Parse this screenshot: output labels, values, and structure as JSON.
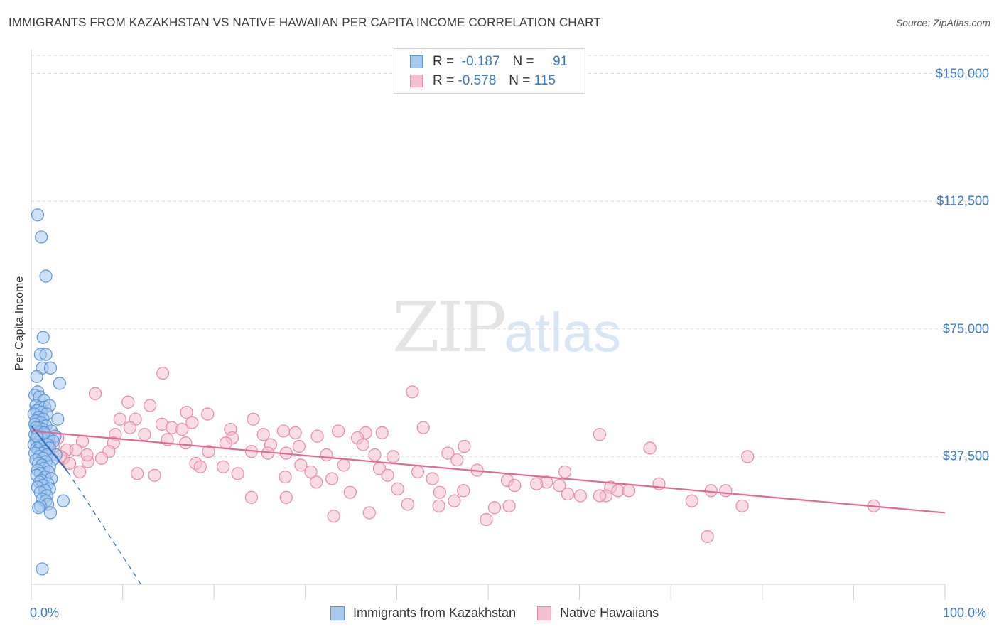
{
  "title": "IMMIGRANTS FROM KAZAKHSTAN VS NATIVE HAWAIIAN PER CAPITA INCOME CORRELATION CHART",
  "source": "Source: ZipAtlas.com",
  "watermark": {
    "zip": "ZIP",
    "atlas": "atlas"
  },
  "legend_top": {
    "rows": [
      {
        "r_label": "R =",
        "r_value": "-0.187",
        "n_label": "N =",
        "n_value": "91"
      },
      {
        "r_label": "R =",
        "r_value": "-0.578",
        "n_label": "N =",
        "n_value": "115"
      }
    ]
  },
  "colors": {
    "blue_fill": "#a8c8ee",
    "blue_stroke": "#5b95d6",
    "blue_line": "#2f6cc4",
    "pink_fill": "#f6bfd0",
    "pink_stroke": "#e88aa8",
    "pink_line": "#e06a93",
    "tick_text": "#3a78c9",
    "grid": "#d9d9d9"
  },
  "chart_data": {
    "type": "scatter",
    "title": "IMMIGRANTS FROM KAZAKHSTAN VS NATIVE HAWAIIAN PER CAPITA INCOME CORRELATION CHART",
    "xlabel": "",
    "ylabel": "Per Capita Income",
    "xlim": [
      0,
      100
    ],
    "ylim": [
      0,
      157000
    ],
    "y_ticks": [
      {
        "value": 37500,
        "label": "$37,500"
      },
      {
        "value": 75000,
        "label": "$75,000"
      },
      {
        "value": 112500,
        "label": "$112,500"
      },
      {
        "value": 150000,
        "label": "$150,000"
      }
    ],
    "x_tick_labels": {
      "min": "0.0%",
      "max": "100.0%"
    },
    "series": [
      {
        "name": "Immigrants from Kazakhstan",
        "color": "blue",
        "trend": {
          "x0": 0,
          "y0": 46500,
          "x1": 4.0,
          "y1": 33000,
          "dash_x1": 12.0,
          "dash_y1": 0
        },
        "points": [
          [
            0.7,
            108500
          ],
          [
            1.1,
            102000
          ],
          [
            1.6,
            90500
          ],
          [
            1.3,
            72500
          ],
          [
            1.0,
            67500
          ],
          [
            1.6,
            67500
          ],
          [
            1.2,
            63500
          ],
          [
            2.1,
            63500
          ],
          [
            0.6,
            61000
          ],
          [
            3.1,
            59000
          ],
          [
            0.7,
            56500
          ],
          [
            0.4,
            55500
          ],
          [
            0.9,
            55000
          ],
          [
            1.4,
            54000
          ],
          [
            0.5,
            52500
          ],
          [
            1.0,
            52000
          ],
          [
            1.5,
            52000
          ],
          [
            2.0,
            52500
          ],
          [
            0.6,
            51000
          ],
          [
            1.1,
            50500
          ],
          [
            0.3,
            50000
          ],
          [
            1.7,
            50000
          ],
          [
            0.8,
            49000
          ],
          [
            1.3,
            48500
          ],
          [
            2.9,
            48500
          ],
          [
            0.5,
            48000
          ],
          [
            1.1,
            47500
          ],
          [
            0.4,
            47000
          ],
          [
            1.6,
            46500
          ],
          [
            0.9,
            46000
          ],
          [
            1.3,
            45500
          ],
          [
            0.6,
            45000
          ],
          [
            2.2,
            45000
          ],
          [
            0.8,
            44500
          ],
          [
            1.5,
            44000
          ],
          [
            0.4,
            44000
          ],
          [
            2.6,
            43500
          ],
          [
            1.0,
            43500
          ],
          [
            0.7,
            43000
          ],
          [
            1.9,
            43000
          ],
          [
            1.2,
            42500
          ],
          [
            0.5,
            42500
          ],
          [
            2.4,
            42000
          ],
          [
            0.9,
            42000
          ],
          [
            1.4,
            41500
          ],
          [
            0.3,
            41000
          ],
          [
            1.8,
            41000
          ],
          [
            1.0,
            40500
          ],
          [
            0.6,
            40000
          ],
          [
            2.0,
            40000
          ],
          [
            0.8,
            39500
          ],
          [
            1.5,
            39000
          ],
          [
            1.1,
            38500
          ],
          [
            0.4,
            38500
          ],
          [
            2.7,
            38000
          ],
          [
            1.7,
            38000
          ],
          [
            0.9,
            37500
          ],
          [
            1.3,
            37000
          ],
          [
            0.5,
            36500
          ],
          [
            2.3,
            36500
          ],
          [
            1.6,
            36000
          ],
          [
            0.8,
            35500
          ],
          [
            1.2,
            35000
          ],
          [
            2.0,
            34500
          ],
          [
            1.4,
            34000
          ],
          [
            0.7,
            33500
          ],
          [
            1.9,
            33000
          ],
          [
            1.0,
            32500
          ],
          [
            0.6,
            32000
          ],
          [
            1.5,
            31500
          ],
          [
            2.2,
            31000
          ],
          [
            1.1,
            30500
          ],
          [
            0.9,
            30000
          ],
          [
            1.8,
            29500
          ],
          [
            1.3,
            29000
          ],
          [
            0.7,
            28500
          ],
          [
            2.0,
            28000
          ],
          [
            1.5,
            27500
          ],
          [
            1.0,
            27000
          ],
          [
            1.7,
            26000
          ],
          [
            1.2,
            25000
          ],
          [
            3.5,
            24500
          ],
          [
            1.6,
            24500
          ],
          [
            1.8,
            23500
          ],
          [
            1.0,
            23000
          ],
          [
            0.8,
            22500
          ],
          [
            2.1,
            21000
          ],
          [
            1.2,
            4500
          ],
          [
            0.5,
            46000
          ],
          [
            1.4,
            44500
          ],
          [
            0.6,
            43500
          ]
        ]
      },
      {
        "name": "Native Hawaiians",
        "color": "pink",
        "trend": {
          "x0": 0,
          "y0": 45000,
          "x1": 100,
          "y1": 21000
        },
        "points": [
          [
            14.4,
            62000
          ],
          [
            41.7,
            56500
          ],
          [
            7.0,
            56000
          ],
          [
            10.6,
            53500
          ],
          [
            13.0,
            52500
          ],
          [
            17.0,
            50500
          ],
          [
            19.3,
            50000
          ],
          [
            9.7,
            48500
          ],
          [
            11.4,
            48500
          ],
          [
            24.3,
            48500
          ],
          [
            17.6,
            47500
          ],
          [
            14.3,
            47000
          ],
          [
            10.8,
            46000
          ],
          [
            15.4,
            46000
          ],
          [
            16.5,
            45500
          ],
          [
            21.8,
            45500
          ],
          [
            27.6,
            45000
          ],
          [
            33.6,
            45000
          ],
          [
            42.9,
            46000
          ],
          [
            28.9,
            44500
          ],
          [
            36.6,
            44500
          ],
          [
            9.2,
            44000
          ],
          [
            12.4,
            44000
          ],
          [
            38.4,
            44500
          ],
          [
            25.4,
            44000
          ],
          [
            31.3,
            43500
          ],
          [
            22.0,
            43000
          ],
          [
            35.7,
            43000
          ],
          [
            14.9,
            42500
          ],
          [
            5.6,
            42000
          ],
          [
            16.9,
            41500
          ],
          [
            9.0,
            41500
          ],
          [
            21.3,
            41500
          ],
          [
            26.2,
            41000
          ],
          [
            36.3,
            41000
          ],
          [
            29.3,
            40500
          ],
          [
            47.4,
            40500
          ],
          [
            62.2,
            44000
          ],
          [
            67.7,
            40000
          ],
          [
            2.4,
            40500
          ],
          [
            3.9,
            39500
          ],
          [
            4.9,
            39500
          ],
          [
            8.5,
            39000
          ],
          [
            19.4,
            39000
          ],
          [
            24.1,
            39000
          ],
          [
            27.9,
            38500
          ],
          [
            25.9,
            38500
          ],
          [
            32.3,
            38000
          ],
          [
            37.6,
            38000
          ],
          [
            45.6,
            38500
          ],
          [
            39.6,
            37500
          ],
          [
            78.4,
            37500
          ],
          [
            7.7,
            37000
          ],
          [
            1.6,
            37500
          ],
          [
            3.5,
            37000
          ],
          [
            6.2,
            36000
          ],
          [
            46.6,
            36500
          ],
          [
            18.0,
            35500
          ],
          [
            29.5,
            35000
          ],
          [
            34.2,
            35000
          ],
          [
            21.0,
            34500
          ],
          [
            38.1,
            34000
          ],
          [
            48.8,
            33500
          ],
          [
            11.6,
            32500
          ],
          [
            13.5,
            32000
          ],
          [
            39.0,
            32000
          ],
          [
            42.3,
            33000
          ],
          [
            58.4,
            33000
          ],
          [
            27.8,
            31500
          ],
          [
            43.9,
            31000
          ],
          [
            32.9,
            31000
          ],
          [
            52.1,
            30500
          ],
          [
            56.4,
            30000
          ],
          [
            52.9,
            29000
          ],
          [
            57.8,
            29000
          ],
          [
            63.4,
            28500
          ],
          [
            68.7,
            29500
          ],
          [
            40.1,
            28000
          ],
          [
            47.3,
            27500
          ],
          [
            44.7,
            27000
          ],
          [
            58.7,
            26500
          ],
          [
            62.9,
            26000
          ],
          [
            64.2,
            27500
          ],
          [
            65.4,
            27500
          ],
          [
            74.4,
            27500
          ],
          [
            24.1,
            25500
          ],
          [
            27.9,
            25500
          ],
          [
            46.3,
            24500
          ],
          [
            60.1,
            26000
          ],
          [
            72.3,
            24500
          ],
          [
            41.2,
            23500
          ],
          [
            44.6,
            23000
          ],
          [
            50.7,
            22500
          ],
          [
            52.3,
            23000
          ],
          [
            77.8,
            23000
          ],
          [
            92.2,
            23000
          ],
          [
            37.0,
            21000
          ],
          [
            33.1,
            20000
          ],
          [
            49.8,
            19000
          ],
          [
            74.0,
            14000
          ],
          [
            2.9,
            43000
          ],
          [
            3.2,
            37500
          ],
          [
            5.3,
            33000
          ],
          [
            6.1,
            38000
          ],
          [
            2.0,
            41000
          ],
          [
            4.2,
            35500
          ],
          [
            1.1,
            42000
          ],
          [
            22.6,
            32500
          ],
          [
            31.2,
            30000
          ],
          [
            34.9,
            27000
          ],
          [
            30.6,
            33000
          ],
          [
            18.5,
            34500
          ],
          [
            62.2,
            26000
          ],
          [
            55.3,
            29500
          ],
          [
            76.0,
            27500
          ]
        ]
      }
    ]
  },
  "bottom_legend": [
    {
      "label": "Immigrants from Kazakhstan"
    },
    {
      "label": "Native Hawaiians"
    }
  ]
}
